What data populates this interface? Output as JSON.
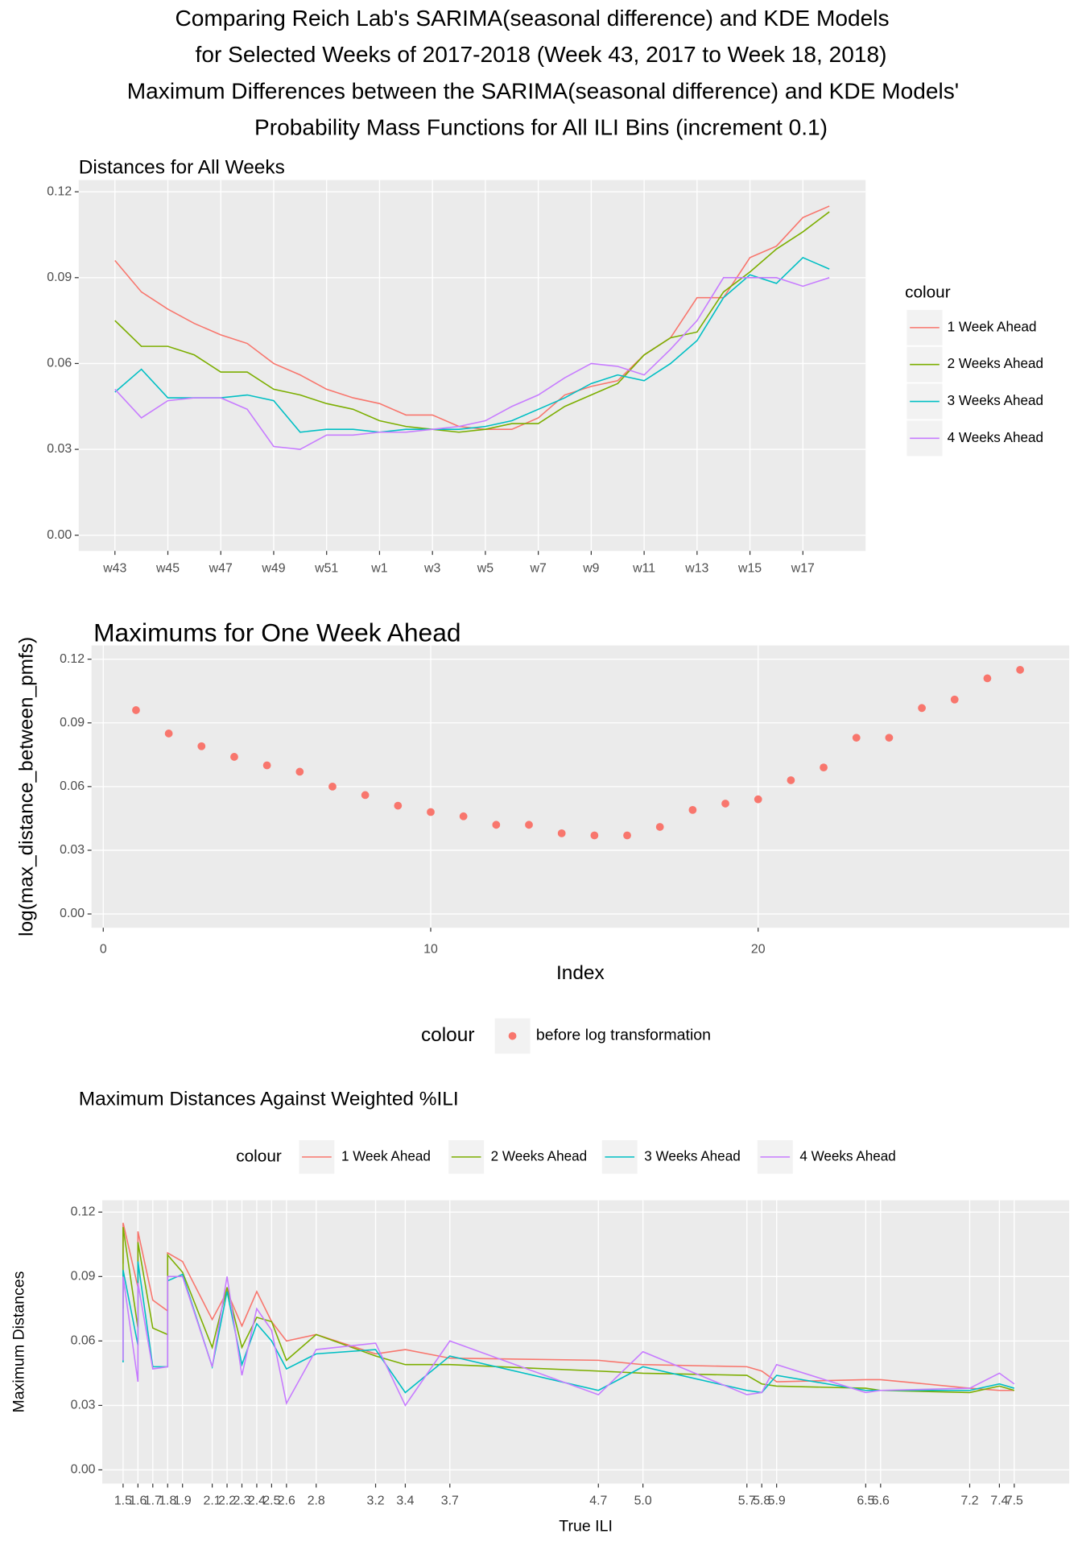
{
  "title": [
    "Comparing Reich Lab's SARIMA(seasonal difference) and KDE Models",
    "for Selected Weeks of 2017-2018 (Week 43, 2017 to Week 18, 2018)",
    "Maximum Differences between the SARIMA(seasonal difference) and KDE Models'",
    "Probability Mass Functions for All ILI Bins (increment 0.1)"
  ],
  "chart_data": [
    {
      "type": "line",
      "title": "Distances for All Weeks",
      "legend_title": "colour",
      "legend": "right",
      "grid": true,
      "categories": [
        "w43",
        null,
        "w45",
        null,
        "w47",
        null,
        "w49",
        null,
        "w51",
        null,
        "w1",
        null,
        "w3",
        null,
        "w5",
        null,
        "w7",
        null,
        "w9",
        null,
        "w11",
        null,
        "w13",
        null,
        "w15",
        null,
        "w17",
        null
      ],
      "ylim": [
        -0.0055,
        0.1241
      ],
      "yticks": [
        {
          "value": 0,
          "label": "0.00"
        },
        0.03,
        0.06,
        0.09,
        0.12
      ],
      "series": [
        {
          "name": "1 Week Ahead",
          "color": "#F8766D",
          "values": [
            0.096,
            0.085,
            0.079,
            0.074,
            0.07,
            0.067,
            0.06,
            0.056,
            0.051,
            0.048,
            0.046,
            0.042,
            0.042,
            0.038,
            0.037,
            0.037,
            0.041,
            0.049,
            0.052,
            0.054,
            0.063,
            0.069,
            0.083,
            0.083,
            0.097,
            0.101,
            0.111,
            0.115
          ]
        },
        {
          "name": "2 Weeks Ahead",
          "color": "#7CAE00",
          "values": [
            0.075,
            0.066,
            0.066,
            0.063,
            0.057,
            0.057,
            0.051,
            0.049,
            0.046,
            0.044,
            0.04,
            0.038,
            0.037,
            0.036,
            0.037,
            0.039,
            0.039,
            0.045,
            0.049,
            0.053,
            0.063,
            0.069,
            0.071,
            0.085,
            0.092,
            0.1,
            0.106,
            0.113
          ]
        },
        {
          "name": "3 Weeks Ahead",
          "color": "#00BFC4",
          "values": [
            0.05,
            0.058,
            0.048,
            0.048,
            0.048,
            0.049,
            0.047,
            0.036,
            0.037,
            0.037,
            0.036,
            0.037,
            0.037,
            0.037,
            0.038,
            0.04,
            0.044,
            0.048,
            0.053,
            0.056,
            0.054,
            0.06,
            0.068,
            0.083,
            0.091,
            0.088,
            0.097,
            0.093
          ]
        },
        {
          "name": "4 Weeks Ahead",
          "color": "#C77CFF",
          "values": [
            0.051,
            0.041,
            0.047,
            0.048,
            0.048,
            0.044,
            0.031,
            0.03,
            0.035,
            0.035,
            0.036,
            0.036,
            0.037,
            0.038,
            0.04,
            0.045,
            0.049,
            0.055,
            0.06,
            0.059,
            0.056,
            0.065,
            0.075,
            0.09,
            0.09,
            0.09,
            0.087,
            0.09
          ]
        }
      ]
    },
    {
      "type": "scatter",
      "title": "Maximums for One Week Ahead",
      "x_label": "Index",
      "y_label": "log(max_distance_between_pmfs)",
      "legend_title": "colour",
      "legend": "bottom",
      "grid": true,
      "x": [
        1,
        2,
        3,
        4,
        5,
        6,
        7,
        8,
        9,
        10,
        11,
        12,
        13,
        14,
        15,
        16,
        17,
        18,
        19,
        20,
        21,
        22,
        23,
        24,
        25,
        26,
        27,
        28
      ],
      "xlim": [
        -0.36,
        29.5
      ],
      "xticks": [
        0,
        10,
        20
      ],
      "ylim": [
        -0.0065,
        0.1265
      ],
      "yticks": [
        {
          "value": 0,
          "label": "0.00"
        },
        0.03,
        0.06,
        0.09,
        0.12
      ],
      "series": [
        {
          "name": "before log transformation",
          "color": "#F8766D",
          "values": [
            0.096,
            0.085,
            0.079,
            0.074,
            0.07,
            0.067,
            0.06,
            0.056,
            0.051,
            0.048,
            0.046,
            0.042,
            0.042,
            0.038,
            0.037,
            0.037,
            0.041,
            0.049,
            0.052,
            0.054,
            0.063,
            0.069,
            0.083,
            0.083,
            0.097,
            0.101,
            0.111,
            0.115
          ]
        }
      ]
    },
    {
      "type": "line",
      "title": "Maximum Distances Against Weighted %ILI",
      "x_label": "True ILI",
      "y_label": "Maximum Distances",
      "legend_title": "colour",
      "legend": "top",
      "grid": true,
      "x": [
        1.5,
        1.5,
        1.6,
        1.6,
        1.7,
        1.8,
        1.8,
        1.9,
        2.1,
        2.2,
        2.3,
        2.4,
        2.5,
        2.6,
        2.8,
        3.2,
        3.4,
        3.7,
        4.7,
        5.0,
        5.7,
        5.8,
        5.9,
        6.5,
        6.6,
        7.2,
        7.4,
        7.5
      ],
      "xlim": [
        1.36,
        7.87
      ],
      "xticks": [
        1.5,
        1.6,
        1.7,
        1.8,
        1.9,
        2.1,
        2.2,
        2.3,
        2.4,
        2.5,
        2.6,
        2.8,
        3.2,
        3.4,
        3.7,
        4.7,
        {
          "value": 5,
          "label": "5.0"
        },
        5.7,
        5.8,
        5.9,
        6.5,
        6.6,
        7.2,
        7.4,
        7.5
      ],
      "ylim": [
        -0.0064,
        0.1255
      ],
      "yticks": [
        {
          "value": 0,
          "label": "0.00"
        },
        0.03,
        0.06,
        0.09,
        0.12
      ],
      "series": [
        {
          "name": "1 Week Ahead",
          "color": "#F8766D",
          "values": [
            0.096,
            0.115,
            0.085,
            0.111,
            0.079,
            0.074,
            0.101,
            0.097,
            0.07,
            0.083,
            0.067,
            0.083,
            0.069,
            0.06,
            0.063,
            0.054,
            0.056,
            0.052,
            0.051,
            0.049,
            0.048,
            0.046,
            0.041,
            0.042,
            0.042,
            0.038,
            0.037,
            0.037
          ]
        },
        {
          "name": "2 Weeks Ahead",
          "color": "#7CAE00",
          "values": [
            0.075,
            0.113,
            0.066,
            0.106,
            0.066,
            0.063,
            0.1,
            0.092,
            0.057,
            0.085,
            0.057,
            0.071,
            0.069,
            0.051,
            0.063,
            0.053,
            0.049,
            0.049,
            0.046,
            0.045,
            0.044,
            0.04,
            0.039,
            0.038,
            0.037,
            0.036,
            0.039,
            0.037
          ]
        },
        {
          "name": "3 Weeks Ahead",
          "color": "#00BFC4",
          "values": [
            0.05,
            0.093,
            0.058,
            0.097,
            0.048,
            0.048,
            0.088,
            0.091,
            0.048,
            0.083,
            0.049,
            0.068,
            0.06,
            0.047,
            0.054,
            0.056,
            0.036,
            0.053,
            0.037,
            0.048,
            0.037,
            0.036,
            0.044,
            0.037,
            0.037,
            0.037,
            0.04,
            0.038
          ]
        },
        {
          "name": "4 Weeks Ahead",
          "color": "#C77CFF",
          "values": [
            0.051,
            0.09,
            0.041,
            0.087,
            0.047,
            0.048,
            0.09,
            0.09,
            0.048,
            0.09,
            0.044,
            0.075,
            0.065,
            0.031,
            0.056,
            0.059,
            0.03,
            0.06,
            0.035,
            0.055,
            0.035,
            0.036,
            0.049,
            0.036,
            0.037,
            0.038,
            0.045,
            0.04
          ]
        }
      ]
    }
  ]
}
